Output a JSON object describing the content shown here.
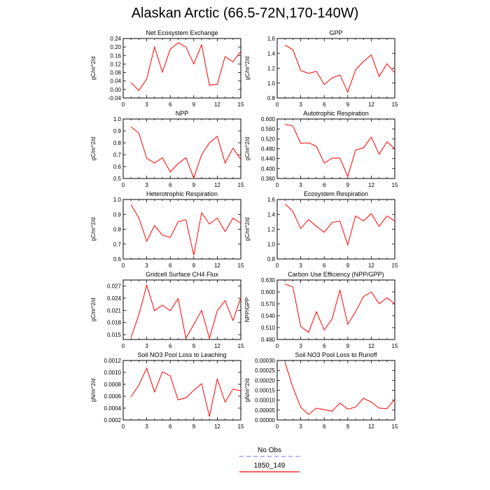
{
  "figure_title": "Alaskan Arctic (66.5-72N,170-140W)",
  "legend": {
    "items": [
      {
        "label": "No Obs",
        "color": "#8c8cff",
        "style": "dashed"
      },
      {
        "label": "1850_149",
        "color": "#ff0000",
        "style": "solid"
      }
    ]
  },
  "chart_data": [
    {
      "type": "line",
      "title": "Net Ecosystem Exchange",
      "xlabel": "",
      "ylabel": "gC/m^2/d",
      "xlim": [
        0,
        15
      ],
      "ylim": [
        -0.04,
        0.24
      ],
      "xticks": [
        0,
        3,
        6,
        9,
        12,
        15
      ],
      "yticks": [
        -0.04,
        0.0,
        0.04,
        0.08,
        0.12,
        0.16,
        0.2,
        0.24
      ],
      "ytick_labels": [
        "-0.04",
        "0.00",
        "0.04",
        "0.08",
        "0.12",
        "0.16",
        "0.20",
        "0.24"
      ],
      "series": [
        {
          "name": "1850_149",
          "x": [
            1,
            2,
            3,
            4,
            5,
            6,
            7,
            8,
            9,
            10,
            11,
            12,
            13,
            14,
            15
          ],
          "values": [
            0.032,
            -0.005,
            0.05,
            0.2,
            0.082,
            0.19,
            0.22,
            0.2,
            0.12,
            0.21,
            0.02,
            0.025,
            0.155,
            0.13,
            0.18
          ]
        }
      ]
    },
    {
      "type": "line",
      "title": "GPP",
      "xlabel": "",
      "ylabel": "gC/m^2/d",
      "xlim": [
        0,
        15
      ],
      "ylim": [
        0.8,
        1.6
      ],
      "xticks": [
        0,
        3,
        6,
        9,
        12,
        15
      ],
      "yticks": [
        0.8,
        1.0,
        1.2,
        1.4,
        1.6
      ],
      "ytick_labels": [
        "0.8",
        "1.0",
        "1.2",
        "1.4",
        "1.6"
      ],
      "series": [
        {
          "name": "1850_149",
          "x": [
            1,
            2,
            3,
            4,
            5,
            6,
            7,
            8,
            9,
            10,
            11,
            12,
            13,
            14,
            15
          ],
          "values": [
            1.51,
            1.45,
            1.17,
            1.13,
            1.16,
            0.98,
            1.07,
            1.11,
            0.88,
            1.18,
            1.29,
            1.38,
            1.09,
            1.26,
            1.14
          ]
        }
      ]
    },
    {
      "type": "line",
      "title": "NPP",
      "xlabel": "",
      "ylabel": "gC/m^2/d",
      "xlim": [
        0,
        15
      ],
      "ylim": [
        0.5,
        1.0
      ],
      "xticks": [
        0,
        3,
        6,
        9,
        12,
        15
      ],
      "yticks": [
        0.5,
        0.6,
        0.7,
        0.8,
        0.9,
        1.0
      ],
      "ytick_labels": [
        "0.5",
        "0.6",
        "0.7",
        "0.8",
        "0.9",
        "1.0"
      ],
      "series": [
        {
          "name": "1850_149",
          "x": [
            1,
            2,
            3,
            4,
            5,
            6,
            7,
            8,
            9,
            10,
            11,
            12,
            13,
            14,
            15
          ],
          "values": [
            0.935,
            0.88,
            0.67,
            0.63,
            0.675,
            0.555,
            0.625,
            0.675,
            0.505,
            0.7,
            0.8,
            0.855,
            0.63,
            0.755,
            0.66
          ]
        }
      ]
    },
    {
      "type": "line",
      "title": "Autotrophic Respiration",
      "xlabel": "",
      "ylabel": "gC/m^2/d",
      "xlim": [
        0,
        15
      ],
      "ylim": [
        0.36,
        0.6
      ],
      "xticks": [
        0,
        3,
        6,
        9,
        12,
        15
      ],
      "yticks": [
        0.36,
        0.4,
        0.44,
        0.48,
        0.52,
        0.56,
        0.6
      ],
      "ytick_labels": [
        "0.360",
        "0.400",
        "0.440",
        "0.480",
        "0.520",
        "0.560",
        "0.600"
      ],
      "series": [
        {
          "name": "1850_149",
          "x": [
            1,
            2,
            3,
            4,
            5,
            6,
            7,
            8,
            9,
            10,
            11,
            12,
            13,
            14,
            15
          ],
          "values": [
            0.578,
            0.572,
            0.502,
            0.504,
            0.49,
            0.422,
            0.442,
            0.442,
            0.368,
            0.475,
            0.483,
            0.527,
            0.458,
            0.508,
            0.48
          ]
        }
      ]
    },
    {
      "type": "line",
      "title": "Heterotrophic Respiration",
      "xlabel": "",
      "ylabel": "gC/m^2/d",
      "xlim": [
        0,
        15
      ],
      "ylim": [
        0.6,
        1.0
      ],
      "xticks": [
        0,
        3,
        6,
        9,
        12,
        15
      ],
      "yticks": [
        0.6,
        0.7,
        0.8,
        0.9,
        1.0
      ],
      "ytick_labels": [
        "0.6",
        "0.7",
        "0.8",
        "0.9",
        "1.0"
      ],
      "series": [
        {
          "name": "1850_149",
          "x": [
            1,
            2,
            3,
            4,
            5,
            6,
            7,
            8,
            9,
            10,
            11,
            12,
            13,
            14,
            15
          ],
          "values": [
            0.965,
            0.875,
            0.72,
            0.825,
            0.76,
            0.745,
            0.85,
            0.865,
            0.625,
            0.91,
            0.835,
            0.875,
            0.785,
            0.875,
            0.84
          ]
        }
      ]
    },
    {
      "type": "line",
      "title": "Ecosystem Respiration",
      "xlabel": "",
      "ylabel": "gC/m^2/d",
      "xlim": [
        0,
        15
      ],
      "ylim": [
        0.8,
        1.6
      ],
      "xticks": [
        0,
        3,
        6,
        9,
        12,
        15
      ],
      "yticks": [
        0.8,
        1.0,
        1.2,
        1.4,
        1.6
      ],
      "ytick_labels": [
        "0.8",
        "1.0",
        "1.2",
        "1.4",
        "1.6"
      ],
      "series": [
        {
          "name": "1850_149",
          "x": [
            1,
            2,
            3,
            4,
            5,
            6,
            7,
            8,
            9,
            10,
            11,
            12,
            13,
            14,
            15
          ],
          "values": [
            1.54,
            1.44,
            1.21,
            1.33,
            1.24,
            1.16,
            1.29,
            1.31,
            0.99,
            1.38,
            1.31,
            1.41,
            1.24,
            1.38,
            1.31
          ]
        }
      ]
    },
    {
      "type": "line",
      "title": "Gridcell Surface CH4 Flux",
      "xlabel": "",
      "ylabel": "gC/m^2/d",
      "xlim": [
        0,
        15
      ],
      "ylim": [
        0.0138,
        0.0285
      ],
      "xticks": [
        0,
        3,
        6,
        9,
        12,
        15
      ],
      "yticks": [
        0.015,
        0.018,
        0.021,
        0.024,
        0.027
      ],
      "ytick_labels": [
        "0.015",
        "0.018",
        "0.021",
        "0.024",
        "0.027"
      ],
      "series": [
        {
          "name": "1850_149",
          "x": [
            1,
            2,
            3,
            4,
            5,
            6,
            7,
            8,
            9,
            10,
            11,
            12,
            13,
            14,
            15
          ],
          "values": [
            0.0143,
            0.0199,
            0.0272,
            0.0209,
            0.0223,
            0.0209,
            0.0239,
            0.0141,
            0.0175,
            0.021,
            0.0141,
            0.0209,
            0.0234,
            0.0185,
            0.0241
          ]
        }
      ]
    },
    {
      "type": "line",
      "title": "Carbon Use Efficiency (NPP/GPP)",
      "xlabel": "",
      "ylabel": "NPP/GPP",
      "xlim": [
        0,
        15
      ],
      "ylim": [
        0.48,
        0.63
      ],
      "xticks": [
        0,
        3,
        6,
        9,
        12,
        15
      ],
      "yticks": [
        0.48,
        0.51,
        0.54,
        0.57,
        0.6,
        0.63
      ],
      "ytick_labels": [
        "0.480",
        "0.510",
        "0.540",
        "0.570",
        "0.600",
        "0.630"
      ],
      "series": [
        {
          "name": "1850_149",
          "x": [
            1,
            2,
            3,
            4,
            5,
            6,
            7,
            8,
            9,
            10,
            11,
            12,
            13,
            14,
            15
          ],
          "values": [
            0.62,
            0.612,
            0.513,
            0.498,
            0.55,
            0.504,
            0.532,
            0.605,
            0.518,
            0.55,
            0.588,
            0.6,
            0.57,
            0.585,
            0.57
          ]
        }
      ]
    },
    {
      "type": "line",
      "title": "Soil NO3 Pool Loss to Leaching",
      "xlabel": "",
      "ylabel": "gN/m^2/d",
      "xlim": [
        0,
        15
      ],
      "ylim": [
        0.0002,
        0.0012
      ],
      "xticks": [
        0,
        3,
        6,
        9,
        12,
        15
      ],
      "yticks": [
        0.0002,
        0.0004,
        0.0006,
        0.0008,
        0.001,
        0.0012
      ],
      "ytick_labels": [
        "0.0002",
        "0.0004",
        "0.0006",
        "0.0008",
        "0.0010",
        "0.0012"
      ],
      "series": [
        {
          "name": "1850_149",
          "x": [
            1,
            2,
            3,
            4,
            5,
            6,
            7,
            8,
            9,
            10,
            11,
            12,
            13,
            14,
            15
          ],
          "values": [
            0.00059,
            0.00079,
            0.00107,
            0.00067,
            0.00101,
            0.00094,
            0.00054,
            0.00057,
            0.0007,
            0.00081,
            0.00026,
            0.00089,
            0.0005,
            0.00072,
            0.00069
          ]
        }
      ]
    },
    {
      "type": "line",
      "title": "Soil NO3 Pool Loss to Runoff",
      "xlabel": "",
      "ylabel": "gN/m^2/d",
      "xlim": [
        0,
        15
      ],
      "ylim": [
        0.0,
        0.0003
      ],
      "xticks": [
        0,
        3,
        6,
        9,
        12,
        15
      ],
      "yticks": [
        0.0,
        5e-05,
        0.0001,
        0.00015,
        0.0002,
        0.00025,
        0.0003
      ],
      "ytick_labels": [
        "0.00000",
        "0.00005",
        "0.00010",
        "0.00015",
        "0.00020",
        "0.00025",
        "0.00030"
      ],
      "series": [
        {
          "name": "1850_149",
          "x": [
            1,
            2,
            3,
            4,
            5,
            6,
            7,
            8,
            9,
            10,
            11,
            12,
            13,
            14,
            15
          ],
          "values": [
            0.00029,
            0.000165,
            6.5e-05,
            2.8e-05,
            6e-05,
            5.2e-05,
            4.5e-05,
            8.5e-05,
            5.5e-05,
            6.5e-05,
            0.00011,
            9e-05,
            6e-05,
            5.8e-05,
            0.000105
          ]
        }
      ]
    }
  ]
}
